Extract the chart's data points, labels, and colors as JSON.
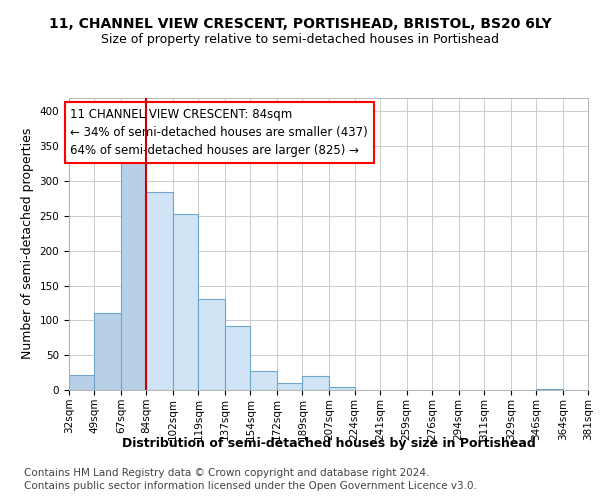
{
  "title_line1": "11, CHANNEL VIEW CRESCENT, PORTISHEAD, BRISTOL, BS20 6LY",
  "title_line2": "Size of property relative to semi-detached houses in Portishead",
  "xlabel": "Distribution of semi-detached houses by size in Portishead",
  "ylabel": "Number of semi-detached properties",
  "footer_line1": "Contains HM Land Registry data © Crown copyright and database right 2024.",
  "footer_line2": "Contains public sector information licensed under the Open Government Licence v3.0.",
  "annotation_title": "11 CHANNEL VIEW CRESCENT: 84sqm",
  "annotation_line1": "← 34% of semi-detached houses are smaller (437)",
  "annotation_line2": "64% of semi-detached houses are larger (825) →",
  "property_size_sqm": 84,
  "bins": [
    32,
    49,
    67,
    84,
    102,
    119,
    137,
    154,
    172,
    189,
    207,
    224,
    241,
    259,
    276,
    294,
    311,
    329,
    346,
    364,
    381
  ],
  "bin_labels": [
    "32sqm",
    "49sqm",
    "67sqm",
    "84sqm",
    "102sqm",
    "119sqm",
    "137sqm",
    "154sqm",
    "172sqm",
    "189sqm",
    "207sqm",
    "224sqm",
    "241sqm",
    "259sqm",
    "276sqm",
    "294sqm",
    "311sqm",
    "329sqm",
    "346sqm",
    "364sqm",
    "381sqm"
  ],
  "bar_values": [
    22,
    110,
    330,
    285,
    253,
    130,
    92,
    27,
    10,
    20,
    5,
    0,
    0,
    0,
    0,
    0,
    0,
    0,
    1,
    0,
    5
  ],
  "bar_color_left": "#b8cfe8",
  "bar_color_right": "#d0e4f5",
  "bar_edge_color": "#6ea6cc",
  "marker_color": "#cc0000",
  "background_color": "#ffffff",
  "grid_color": "#cccccc",
  "ylim": [
    0,
    420
  ],
  "yticks": [
    0,
    50,
    100,
    150,
    200,
    250,
    300,
    350,
    400
  ],
  "title_fontsize": 10,
  "subtitle_fontsize": 9,
  "axis_label_fontsize": 9,
  "tick_fontsize": 7.5,
  "annotation_fontsize": 8.5,
  "footer_fontsize": 7.5
}
